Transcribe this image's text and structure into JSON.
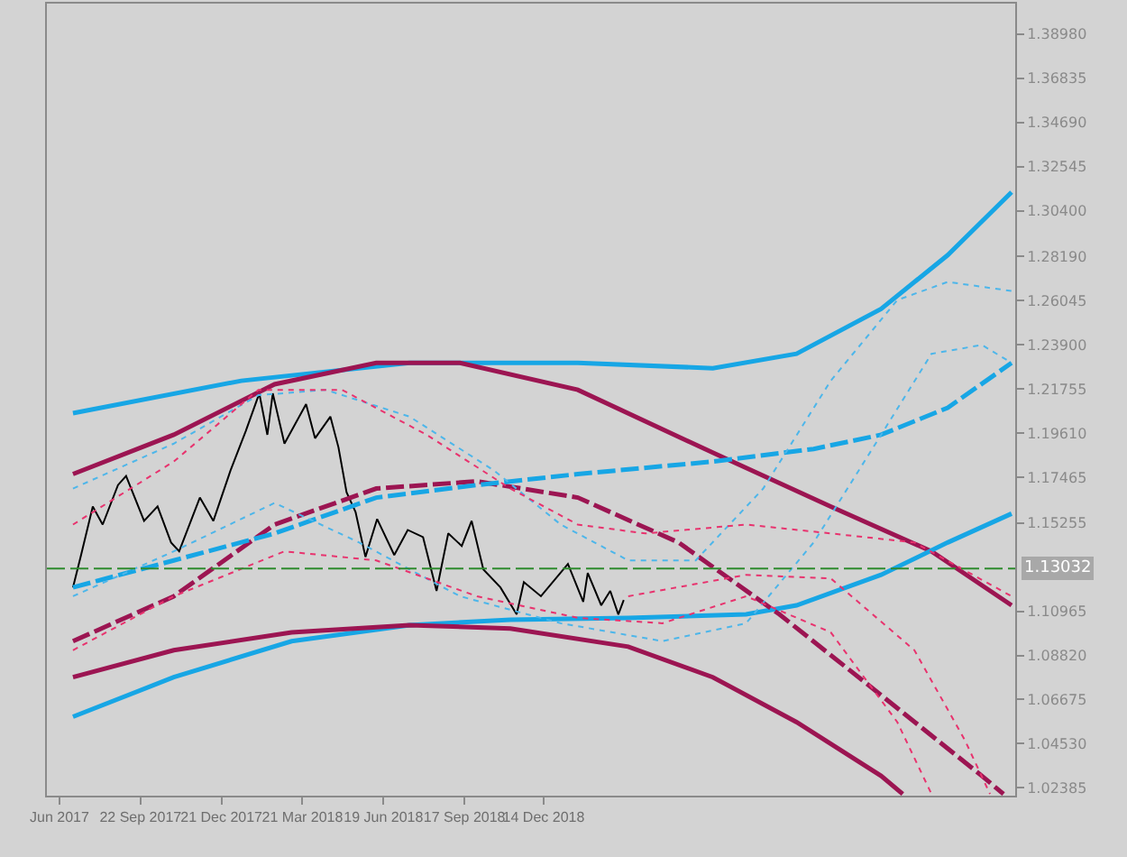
{
  "chart_data": {
    "type": "line",
    "xlim": [
      "2017-06-10",
      "2020-05-21"
    ],
    "xticks": [
      {
        "value": "2017-06-24",
        "label": "Jun 2017"
      },
      {
        "value": "2017-09-22",
        "label": "22 Sep 2017"
      },
      {
        "value": "2017-12-21",
        "label": "21 Dec 2017"
      },
      {
        "value": "2018-03-21",
        "label": "21 Mar 2018"
      },
      {
        "value": "2018-06-19",
        "label": "19 Jun 2018"
      },
      {
        "value": "2018-09-17",
        "label": "17 Sep 2018"
      },
      {
        "value": "2018-12-14",
        "label": "14 Dec 2018"
      }
    ],
    "ylim": [
      1.0201,
      1.4046
    ],
    "yticks": [
      {
        "value": 1.3898,
        "label": "1.38980"
      },
      1.36835,
      {
        "value": 1.3469,
        "label": "1.34690"
      },
      1.32545,
      {
        "value": 1.304,
        "label": "1.30400"
      },
      {
        "value": 1.2819,
        "label": "1.28190"
      },
      1.26045,
      {
        "value": 1.239,
        "label": "1.23900"
      },
      1.21755,
      {
        "value": 1.1961,
        "label": "1.19610"
      },
      1.17465,
      1.15255,
      1.10965,
      {
        "value": 1.0882,
        "label": "1.08820"
      },
      1.06675,
      {
        "value": 1.0453,
        "label": "1.04530"
      },
      1.02385
    ],
    "ref_lines": [
      {
        "axis": "y",
        "value": 1.13032,
        "label": "1.13032",
        "color": "#2e8b2e",
        "line_style": "dashed"
      }
    ],
    "series": [
      {
        "color": "#000000",
        "x": [
          "2017-07-09",
          "2017-07-18",
          "2017-07-31",
          "2017-08-11",
          "2017-08-28",
          "2017-09-06",
          "2017-09-26",
          "2017-10-11",
          "2017-10-26",
          "2017-11-04",
          "2017-11-27",
          "2017-12-12",
          "2017-12-31",
          "2018-01-17",
          "2018-02-01",
          "2018-02-10",
          "2018-02-16",
          "2018-03-01",
          "2018-03-25",
          "2018-04-04",
          "2018-04-21",
          "2018-04-30",
          "2018-05-09",
          "2018-05-19",
          "2018-05-30",
          "2018-06-12",
          "2018-07-01",
          "2018-07-16",
          "2018-08-02",
          "2018-08-17",
          "2018-08-30",
          "2018-09-14",
          "2018-09-25",
          "2018-10-08",
          "2018-10-27",
          "2018-11-14",
          "2018-11-22",
          "2018-12-11",
          "2019-01-10",
          "2019-01-27",
          "2019-02-01",
          "2019-02-16",
          "2019-02-26",
          "2019-03-07",
          "2019-03-13"
        ],
        "values": [
          1.1212,
          1.1369,
          1.1605,
          1.1517,
          1.1709,
          1.1753,
          1.1535,
          1.1605,
          1.143,
          1.1387,
          1.1648,
          1.1535,
          1.1779,
          1.1971,
          1.2154,
          1.1953,
          1.2154,
          1.191,
          1.2102,
          1.1936,
          1.2041,
          1.1892,
          1.1674,
          1.1578,
          1.136,
          1.1544,
          1.1369,
          1.1491,
          1.1456,
          1.1195,
          1.1474,
          1.1413,
          1.1535,
          1.1299,
          1.1212,
          1.1081,
          1.1238,
          1.1169,
          1.1326,
          1.1142,
          1.1282,
          1.1125,
          1.1195,
          1.1081,
          1.1151
        ]
      },
      {
        "color": "#17a6e5",
        "line_style": "solid",
        "x": [
          "2017-07-09",
          "2018-01-12",
          "2018-07-18",
          "2019-01-21",
          "2019-06-20",
          "2019-09-21",
          "2019-12-24",
          "2020-03-07",
          "2020-05-17"
        ],
        "values": [
          1.2058,
          1.2215,
          1.2302,
          1.2302,
          1.2276,
          1.2346,
          1.2564,
          1.2825,
          1.3131
        ]
      },
      {
        "color": "#9c1552",
        "line_style": "solid",
        "x": [
          "2017-07-09",
          "2017-10-29",
          "2018-02-18",
          "2018-06-11",
          "2018-09-12",
          "2019-01-21",
          "2019-06-20",
          "2019-10-29",
          "2020-02-18",
          "2020-05-17"
        ],
        "values": [
          1.1762,
          1.1953,
          1.2198,
          1.2302,
          1.2302,
          1.2171,
          1.1866,
          1.1605,
          1.1387,
          1.1125
        ]
      },
      {
        "color": "#17a6e5",
        "line_style": "solid",
        "x": [
          "2017-07-09",
          "2017-10-29",
          "2018-03-09",
          "2018-07-18",
          "2018-11-07",
          "2019-03-18",
          "2019-07-27",
          "2019-09-21",
          "2019-12-24",
          "2020-03-07",
          "2020-05-17"
        ],
        "values": [
          1.0584,
          1.0776,
          1.0951,
          1.1029,
          1.1055,
          1.1064,
          1.1081,
          1.1125,
          1.1273,
          1.143,
          1.157
        ]
      },
      {
        "color": "#9c1552",
        "line_style": "solid",
        "x": [
          "2017-07-09",
          "2017-10-29",
          "2018-03-09",
          "2018-07-18",
          "2018-11-07",
          "2019-03-18",
          "2019-06-20",
          "2019-09-21",
          "2019-12-24",
          "2020-01-17"
        ],
        "values": [
          1.0776,
          1.0907,
          1.0994,
          1.1029,
          1.1012,
          1.0924,
          1.0776,
          1.0558,
          1.0297,
          1.0209
        ]
      },
      {
        "color": "#9c1552",
        "line_style": "dashed",
        "x": [
          "2017-07-09",
          "2017-10-29",
          "2018-02-18",
          "2018-06-11",
          "2018-10-01",
          "2019-01-21",
          "2019-05-13",
          "2019-09-02",
          "2019-12-24",
          "2020-04-14",
          "2020-05-08"
        ],
        "values": [
          1.0951,
          1.1169,
          1.1517,
          1.1692,
          1.1727,
          1.1648,
          1.143,
          1.1081,
          1.0689,
          1.0297,
          1.0209
        ]
      },
      {
        "color": "#17a6e5",
        "line_style": "dashed",
        "x": [
          "2017-07-09",
          "2017-10-29",
          "2018-02-18",
          "2018-06-11",
          "2018-10-01",
          "2019-01-21",
          "2019-06-20",
          "2019-10-10",
          "2019-12-24",
          "2020-03-07",
          "2020-05-17"
        ],
        "values": [
          1.1212,
          1.1343,
          1.1474,
          1.1648,
          1.1709,
          1.1762,
          1.1823,
          1.1884,
          1.1953,
          1.2084,
          1.2302
        ]
      },
      {
        "color": "#4db6ea",
        "line_style": "dotted",
        "x": [
          "2017-07-09",
          "2017-10-29",
          "2018-01-31",
          "2018-04-16",
          "2018-07-18",
          "2018-10-20",
          "2019-01-02",
          "2019-03-18",
          "2019-06-01",
          "2019-08-15",
          "2019-10-29",
          "2020-01-11",
          "2020-03-07",
          "2020-05-17"
        ],
        "values": [
          1.1692,
          1.191,
          1.2145,
          1.2171,
          1.2041,
          1.1779,
          1.1517,
          1.1343,
          1.1343,
          1.1692,
          1.2215,
          1.2607,
          1.2695,
          1.2651
        ]
      },
      {
        "color": "#4db6ea",
        "line_style": "dotted",
        "x": [
          "2017-07-09",
          "2017-10-29",
          "2018-02-18",
          "2018-05-23",
          "2018-09-12",
          "2019-01-02",
          "2019-04-25",
          "2019-07-27",
          "2019-10-10",
          "2019-12-24",
          "2020-02-18",
          "2020-04-14",
          "2020-05-17"
        ],
        "values": [
          1.1169,
          1.1387,
          1.1622,
          1.143,
          1.1169,
          1.1038,
          1.0951,
          1.1038,
          1.143,
          1.1953,
          1.2346,
          1.2389,
          1.2302
        ]
      },
      {
        "color": "#e8336e",
        "line_style": "dotted",
        "x": [
          "2017-07-09",
          "2017-10-29",
          "2018-01-31",
          "2018-05-04",
          "2018-08-06",
          "2018-11-07",
          "2019-01-21",
          "2019-04-06",
          "2019-07-27",
          "2019-10-29",
          "2020-01-30",
          "2020-05-17"
        ],
        "values": [
          1.1517,
          1.1823,
          1.2171,
          1.2171,
          1.1953,
          1.1692,
          1.1517,
          1.1474,
          1.1517,
          1.1474,
          1.143,
          1.1169
        ]
      },
      {
        "color": "#e8336e",
        "line_style": "dotted",
        "x": [
          "2017-07-09",
          "2017-10-29",
          "2018-03-01",
          "2018-06-11",
          "2018-10-01",
          "2019-01-21",
          "2019-04-25",
          "2019-07-27",
          "2019-10-29",
          "2020-01-11",
          "2020-02-18"
        ],
        "values": [
          1.0907,
          1.1169,
          1.1387,
          1.1343,
          1.1169,
          1.1064,
          1.1038,
          1.1169,
          1.0994,
          1.0558,
          1.0209
        ]
      },
      {
        "color": "#e8336e",
        "line_style": "dotted",
        "x": [
          "2019-03-18",
          "2019-07-27",
          "2019-10-29",
          "2020-01-30",
          "2020-03-26",
          "2020-04-23"
        ],
        "values": [
          1.1169,
          1.1273,
          1.1256,
          1.0907,
          1.0471,
          1.0209
        ]
      }
    ]
  }
}
